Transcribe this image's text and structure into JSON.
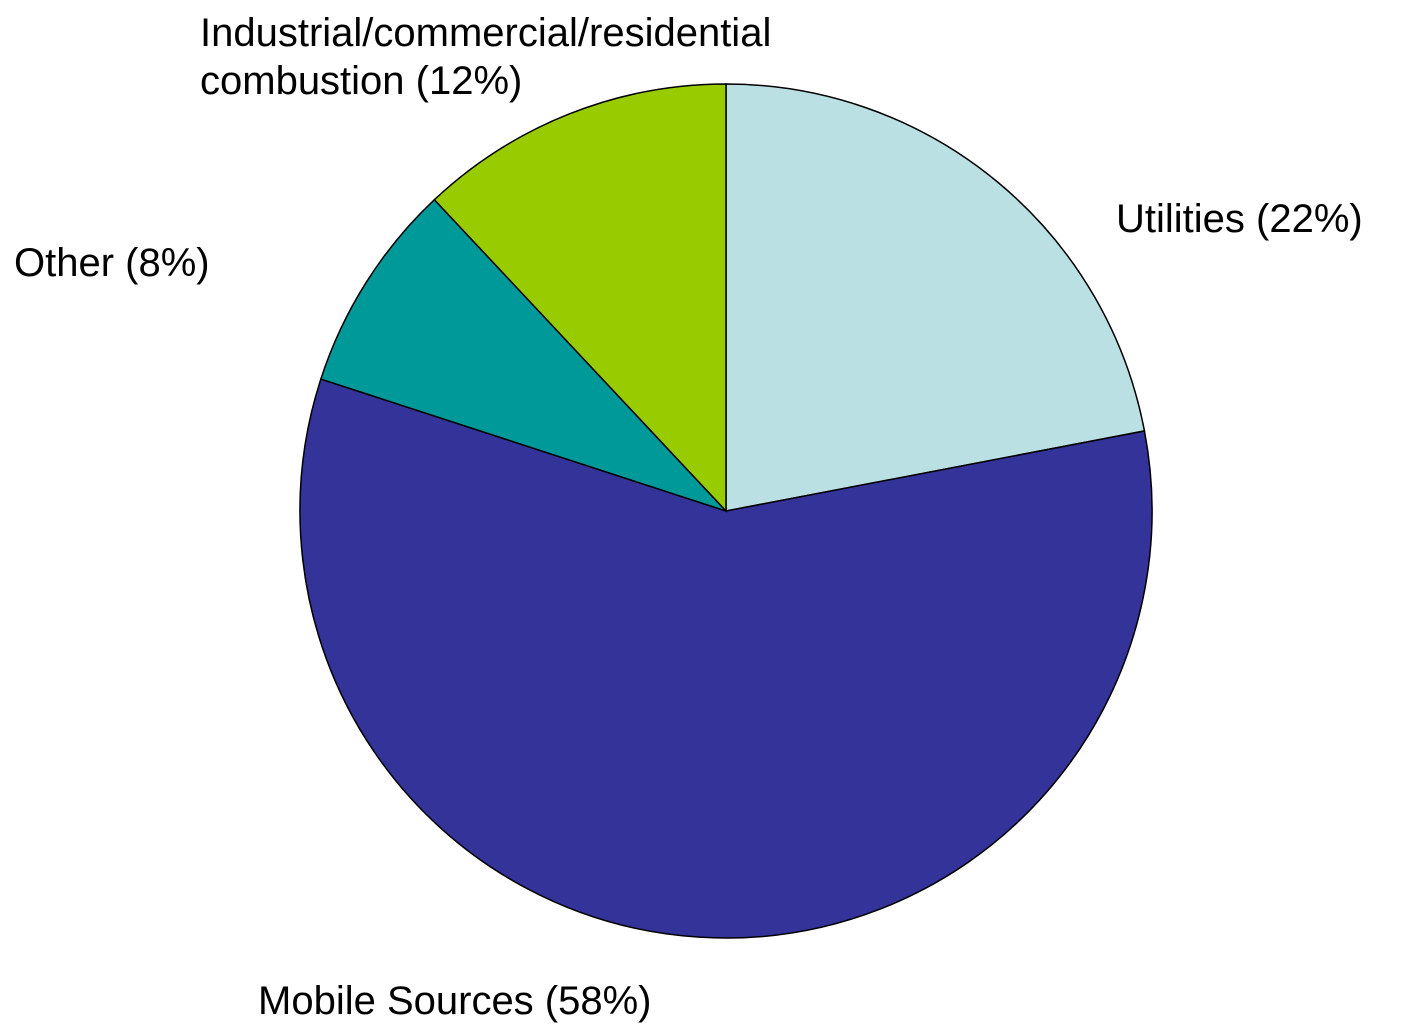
{
  "chart_data": {
    "type": "pie",
    "start": "12 o'clock",
    "direction": "clockwise",
    "slices": [
      {
        "label_lines": [
          "Utilities (22%)"
        ],
        "value": 22,
        "color": "#BBE0E3"
      },
      {
        "label_lines": [
          "Mobile Sources (58%)"
        ],
        "value": 58,
        "color": "#333399"
      },
      {
        "label_lines": [
          "Other (8%)"
        ],
        "value": 8,
        "color": "#009999"
      },
      {
        "label_lines": [
          "Industrial/commercial/residential",
          "combustion (12%)"
        ],
        "value": 12,
        "color": "#99CC00"
      }
    ]
  }
}
